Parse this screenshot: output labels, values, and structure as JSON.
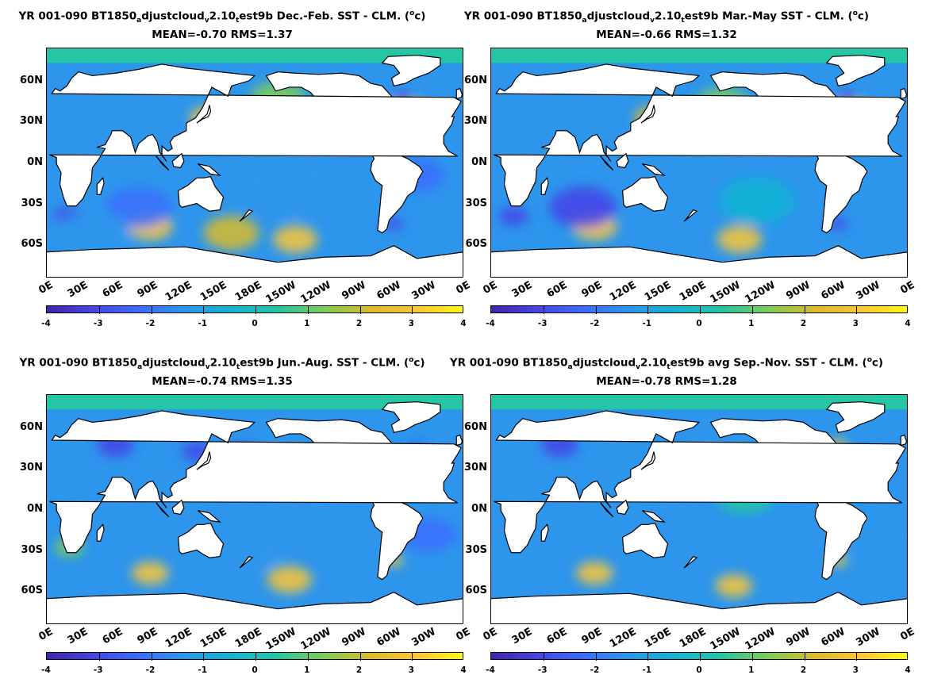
{
  "panels": [
    {
      "title_prefix": "YR 001-090 BT1850",
      "title_sub1": "a",
      "title_mid1": "djustcloud",
      "title_sub2": "v",
      "title_mid2": "2.10",
      "title_sub3": "t",
      "title_tail": "est9b  Dec.-Feb. SST - CLM. (",
      "title_sup": "o",
      "title_unit": "c)",
      "stats": "MEAN=-0.70   RMS=1.37"
    },
    {
      "title_prefix": "YR 001-090 BT1850",
      "title_sub1": "a",
      "title_mid1": "djustcloud",
      "title_sub2": "v",
      "title_mid2": "2.10",
      "title_sub3": "t",
      "title_tail": "est9b Mar.-May SST - CLM. (",
      "title_sup": "o",
      "title_unit": "c)",
      "stats": "MEAN=-0.66   RMS=1.32"
    },
    {
      "title_prefix": "YR 001-090 BT1850",
      "title_sub1": "a",
      "title_mid1": "djustcloud",
      "title_sub2": "v",
      "title_mid2": "2.10",
      "title_sub3": "t",
      "title_tail": "est9b Jun.-Aug. SST - CLM. (",
      "title_sup": "o",
      "title_unit": "c)",
      "stats": "MEAN=-0.74   RMS=1.35"
    },
    {
      "title_prefix": "YR 001-090 BT1850",
      "title_sub1": "a",
      "title_mid1": "djustcloud",
      "title_sub2": "v",
      "title_mid2": "2.10",
      "title_sub3": "t",
      "title_tail": "est9b avg Sep.-Nov. SST - CLM. (",
      "title_sup": "o",
      "title_unit": "c)",
      "stats": "MEAN=-0.78   RMS=1.28"
    }
  ],
  "lat_labels": [
    "60N",
    "30N",
    "0N",
    "30S",
    "60S"
  ],
  "lon_labels": [
    "0E",
    "30E",
    "60E",
    "90E",
    "120E",
    "150E",
    "180E",
    "150W",
    "120W",
    "90W",
    "60W",
    "30W",
    "0E"
  ],
  "colorbar_labels": [
    "-4",
    "-3",
    "-2",
    "-1",
    "0",
    "1",
    "2",
    "3",
    "4"
  ],
  "colormap": [
    "#3e26a8",
    "#4743e8",
    "#3a6efd",
    "#2d96ec",
    "#13b4d4",
    "#25c6a3",
    "#80cb58",
    "#dbbb2b",
    "#fcc537",
    "#f9fb15"
  ]
}
